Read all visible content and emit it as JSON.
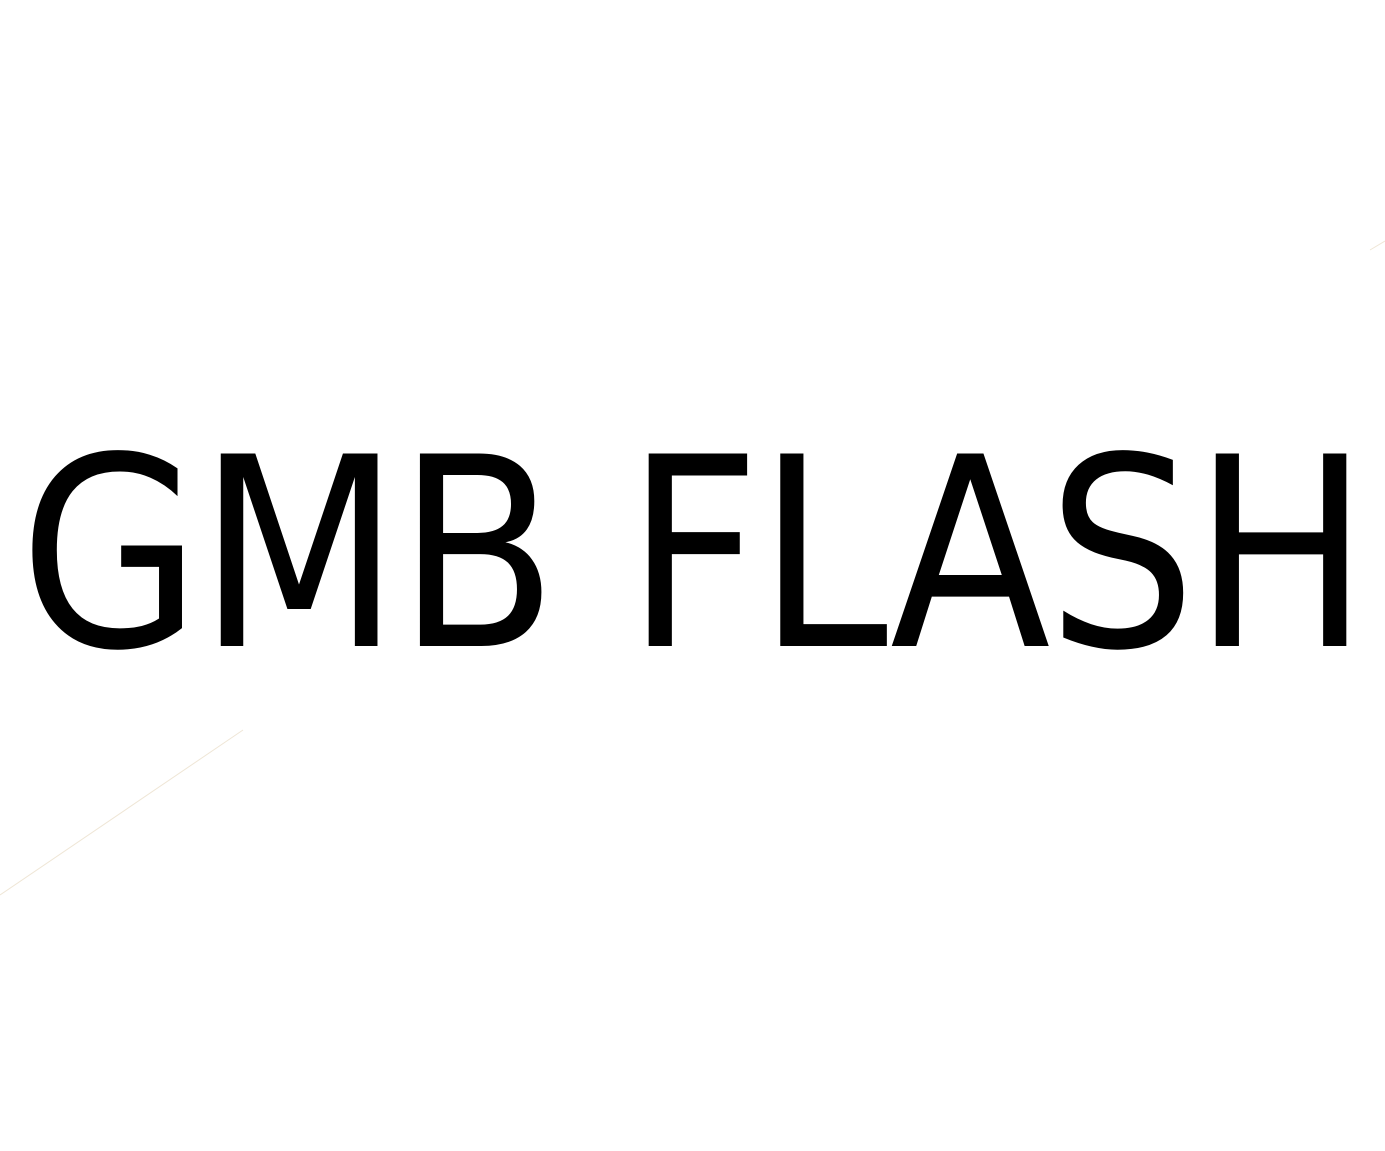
{
  "wordmark": {
    "text": "GMB FLASH",
    "color": "#000000"
  },
  "background": "#ffffff",
  "decorative_line_color": "#efe6d6"
}
